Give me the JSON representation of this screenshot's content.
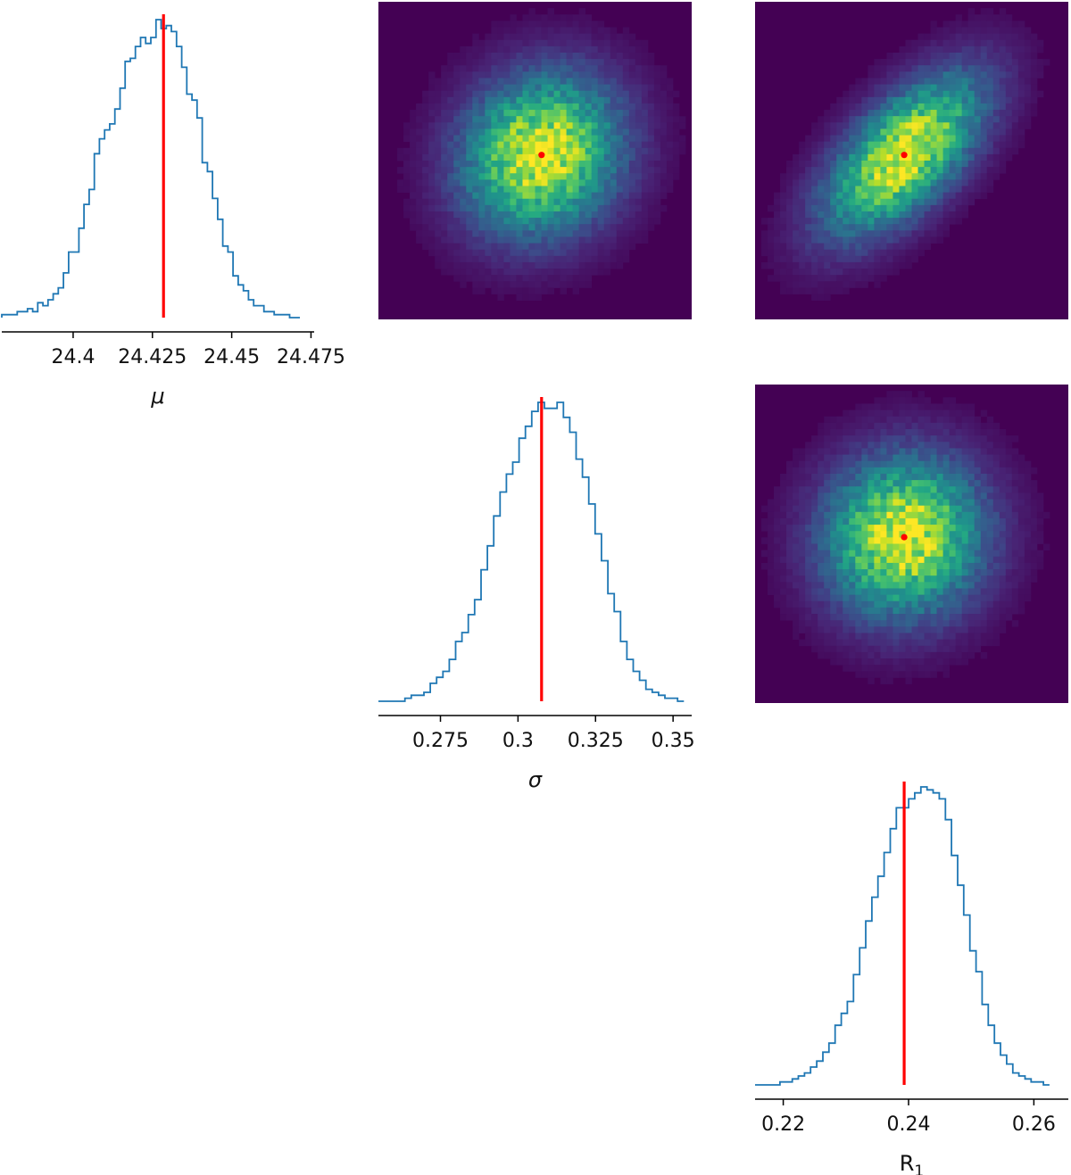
{
  "chart_data": {
    "type": "corner",
    "parameters": [
      {
        "key": "mu",
        "label": "μ",
        "italic": true,
        "true_value": 24.4285,
        "range": [
          24.3775,
          24.476
        ],
        "ticks": [
          "24.4",
          "24.425",
          "24.45",
          "24.475"
        ],
        "tick_values": [
          24.4,
          24.425,
          24.45,
          24.475
        ]
      },
      {
        "key": "sigma",
        "label": "σ",
        "italic": true,
        "true_value": 0.3076,
        "range": [
          0.255,
          0.356
        ],
        "ticks": [
          "0.275",
          "0.3",
          "0.325",
          "0.35"
        ],
        "tick_values": [
          0.275,
          0.3,
          0.325,
          0.35
        ]
      },
      {
        "key": "R1",
        "label": "R",
        "label_sub": "1",
        "italic": false,
        "true_value": 0.2393,
        "range": [
          0.2155,
          0.2655
        ],
        "ticks": [
          "0.22",
          "0.24",
          "0.26"
        ],
        "tick_values": [
          0.22,
          0.24,
          0.26
        ]
      }
    ],
    "histograms": [
      {
        "param": "mu",
        "kind": "1d-step-histogram",
        "bin_range": [
          24.3775,
          24.4715
        ],
        "counts": [
          0.01,
          0.01,
          0.01,
          0.02,
          0.02,
          0.03,
          0.02,
          0.05,
          0.04,
          0.06,
          0.08,
          0.1,
          0.15,
          0.22,
          0.22,
          0.3,
          0.38,
          0.43,
          0.55,
          0.6,
          0.63,
          0.65,
          0.7,
          0.77,
          0.86,
          0.87,
          0.91,
          0.94,
          0.92,
          0.94,
          1.0,
          0.97,
          0.98,
          0.96,
          0.91,
          0.84,
          0.75,
          0.73,
          0.67,
          0.52,
          0.49,
          0.4,
          0.33,
          0.24,
          0.22,
          0.14,
          0.11,
          0.09,
          0.06,
          0.04,
          0.04,
          0.02,
          0.02,
          0.01,
          0.01,
          0.01,
          0.0,
          0.0
        ]
      },
      {
        "param": "sigma",
        "kind": "1d-step-histogram",
        "bin_range": [
          0.2615,
          0.3535
        ],
        "counts": [
          0.0,
          0.01,
          0.02,
          0.02,
          0.03,
          0.06,
          0.08,
          0.1,
          0.14,
          0.2,
          0.23,
          0.29,
          0.34,
          0.44,
          0.52,
          0.62,
          0.7,
          0.76,
          0.8,
          0.88,
          0.92,
          0.97,
          1.0,
          0.98,
          0.98,
          1.0,
          0.95,
          0.9,
          0.81,
          0.75,
          0.66,
          0.56,
          0.47,
          0.36,
          0.3,
          0.2,
          0.14,
          0.1,
          0.07,
          0.04,
          0.03,
          0.02,
          0.01,
          0.01,
          0.0
        ]
      },
      {
        "param": "R1",
        "kind": "1d-step-histogram",
        "bin_range": [
          0.2185,
          0.2625
        ],
        "counts": [
          0.0,
          0.01,
          0.01,
          0.02,
          0.03,
          0.04,
          0.06,
          0.08,
          0.11,
          0.14,
          0.2,
          0.24,
          0.28,
          0.37,
          0.46,
          0.55,
          0.63,
          0.7,
          0.78,
          0.86,
          0.93,
          0.93,
          0.96,
          0.98,
          1.0,
          0.99,
          0.98,
          0.96,
          0.89,
          0.77,
          0.67,
          0.57,
          0.45,
          0.38,
          0.27,
          0.2,
          0.14,
          0.1,
          0.07,
          0.04,
          0.03,
          0.02,
          0.01,
          0.01,
          0.0
        ]
      }
    ],
    "density_panels": [
      {
        "x_param": "sigma",
        "y_param": "mu",
        "kind": "2d-histogram",
        "correlation": 0.12,
        "truth_marker": [
          0.3076,
          24.4285
        ]
      },
      {
        "x_param": "R1",
        "y_param": "mu",
        "kind": "2d-histogram",
        "correlation": 0.62,
        "truth_marker": [
          0.2393,
          24.4285
        ]
      },
      {
        "x_param": "R1",
        "y_param": "sigma",
        "kind": "2d-histogram",
        "correlation": 0.05,
        "truth_marker": [
          0.2393,
          0.3076
        ]
      }
    ],
    "grid": false,
    "legend": "none"
  },
  "style": {
    "hist_color": "#1f77b4",
    "truth_color": "#ff0000",
    "axis_color": "#000000",
    "colormap": "viridis",
    "density_background": "#440154"
  }
}
